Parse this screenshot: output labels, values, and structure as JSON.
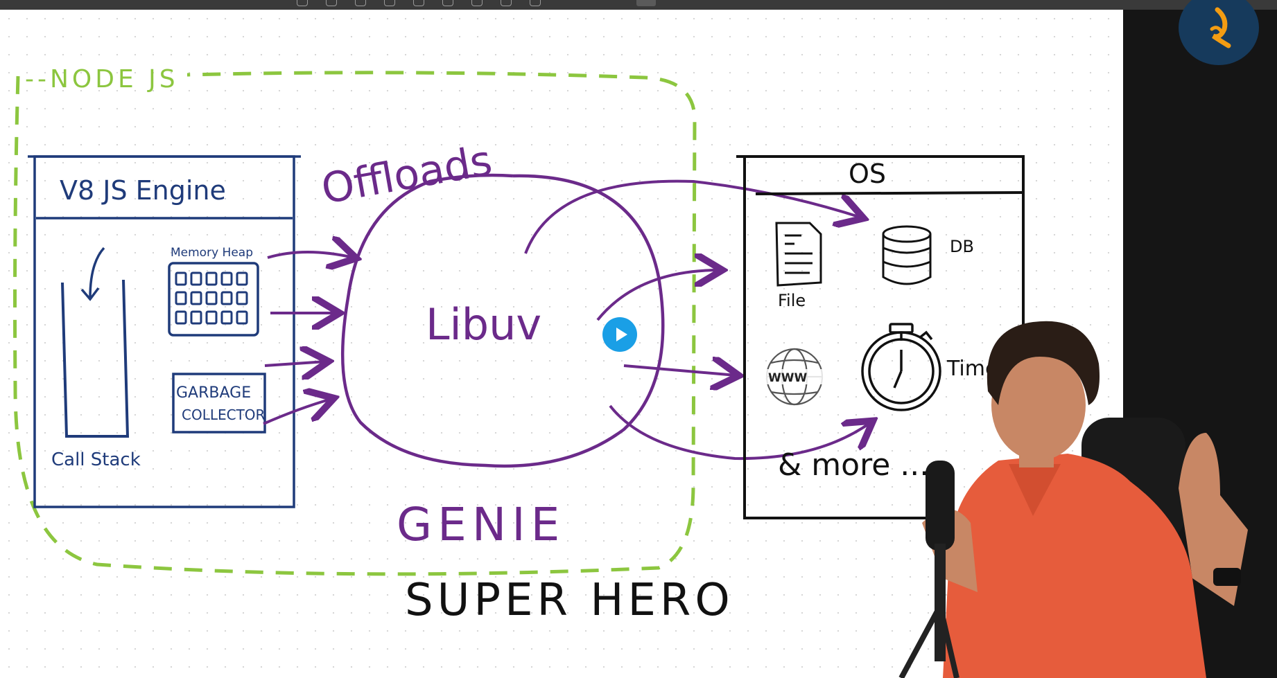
{
  "diagram": {
    "node_label": "--NODE JS",
    "v8_title": "V8  JS  Engine",
    "memory_heap_label": "Memory Heap",
    "gc_label_line1": "GARBAGE",
    "gc_label_line2": "COLLECTOR",
    "call_stack_label": "Call Stack",
    "offloads_label": "Offloads",
    "libuv_label": "Libuv",
    "genie_label": "GENIE",
    "superhero_label": "SUPER   HERO",
    "os_title": "OS",
    "file_label": "File",
    "db_label": "DB",
    "timer_label": "Timer",
    "www_label": "WWW",
    "more_label": "& more ..."
  },
  "colors": {
    "node_dash": "#8cc63f",
    "v8_ink": "#1f3b7a",
    "libuv_ink": "#6b2a8a",
    "black_ink": "#111111",
    "play_button": "#1a9fe6",
    "logo_bg": "#163a5c",
    "logo_accent": "#f39c12"
  },
  "icons": [
    "document-icon",
    "database-icon",
    "globe-icon",
    "stopwatch-icon",
    "play-icon",
    "logo-icon"
  ]
}
